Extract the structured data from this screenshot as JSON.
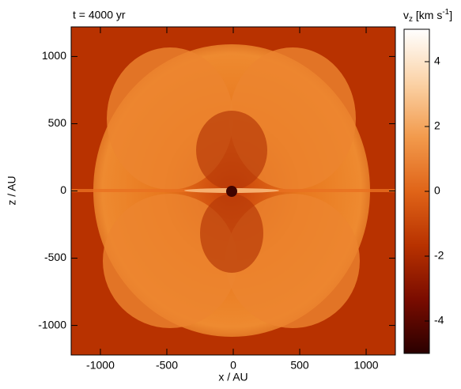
{
  "chart_data": {
    "type": "heatmap",
    "title": "t = 4000 yr",
    "x_label": "x / AU",
    "y_label": "z / AU",
    "colorbar_label": [
      "v",
      "z",
      " [km s",
      "-1",
      "]"
    ],
    "xlim": [
      -1220,
      1220
    ],
    "xticks": [
      -1000,
      -500,
      0,
      500,
      1000
    ],
    "ylim": [
      -1220,
      1220
    ],
    "yticks": [
      -1000,
      -500,
      0,
      500,
      1000
    ],
    "clim": [
      -5,
      5
    ],
    "cticks": [
      -4,
      -2,
      0,
      2,
      4
    ],
    "colormap": [
      "#2a0000",
      "#7a0c00",
      "#b83200",
      "#e06418",
      "#f29a4c",
      "#fbd2a6",
      "#ffffff"
    ]
  }
}
